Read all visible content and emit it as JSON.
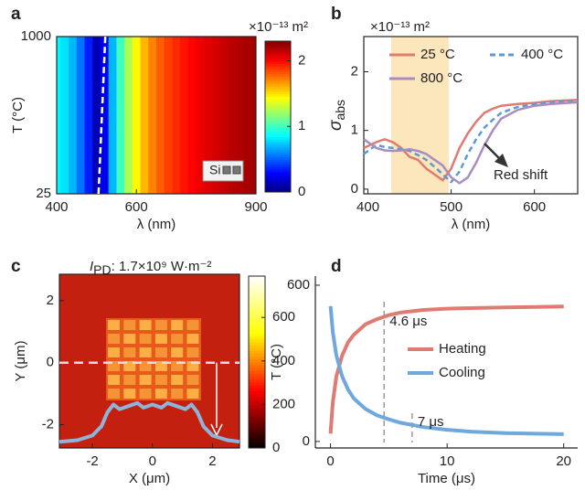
{
  "chart_data": [
    {
      "type": "heatmap",
      "panel": "a",
      "x_label": "λ (nm)",
      "y_label": "T (°C)",
      "xlim": [
        400,
        900
      ],
      "xticks": [
        400,
        600,
        900
      ],
      "ylim": [
        25,
        1000
      ],
      "yticks": [
        25,
        1000
      ],
      "x": [
        400,
        420,
        440,
        460,
        480,
        500,
        520,
        540,
        560,
        580,
        600,
        620,
        640,
        660,
        680,
        700,
        720,
        740,
        760,
        780,
        800,
        820,
        840,
        860,
        880,
        900
      ],
      "values": [
        0.85,
        0.8,
        0.7,
        0.55,
        0.35,
        0.12,
        0.25,
        0.7,
        1.0,
        1.25,
        1.45,
        1.6,
        1.72,
        1.8,
        1.87,
        1.92,
        1.97,
        2.01,
        2.05,
        2.08,
        2.11,
        2.14,
        2.17,
        2.19,
        2.21,
        2.22
      ],
      "minimum_line": {
        "x": [
          505,
          522
        ],
        "y": [
          25,
          1000
        ]
      },
      "inset_label": "Si",
      "colorbar": {
        "label": "×10⁻¹³ m²",
        "lim": [
          0,
          2.3
        ],
        "ticks": [
          0,
          1,
          2
        ],
        "colormap": "jet"
      }
    },
    {
      "type": "line",
      "panel": "b",
      "x_label": "λ (nm)",
      "y_label": "σ",
      "y_label_subscript": "abs",
      "unit_label": "×10⁻¹³ m²",
      "xlim": [
        395,
        652
      ],
      "xticks": [
        400,
        500,
        600
      ],
      "ylim": [
        -0.08,
        2.6
      ],
      "yticks": [
        0,
        1,
        2
      ],
      "shaded_span": {
        "range": [
          428,
          497
        ],
        "color": "#fce6bb"
      },
      "annotation": "Red shift",
      "x": [
        395,
        410,
        420,
        430,
        440,
        450,
        460,
        470,
        480,
        490,
        500,
        510,
        520,
        530,
        540,
        550,
        560,
        580,
        600,
        620,
        652
      ],
      "series": [
        {
          "name": "25 °C",
          "color": "#e07b72",
          "dash": false,
          "values": [
            0.7,
            0.8,
            0.85,
            0.8,
            0.7,
            0.55,
            0.5,
            0.35,
            0.25,
            0.15,
            0.35,
            0.7,
            0.95,
            1.15,
            1.3,
            1.37,
            1.42,
            1.45,
            1.47,
            1.5,
            1.52
          ]
        },
        {
          "name": "400 °C",
          "color": "#5b9bd5",
          "dash": true,
          "values": [
            0.6,
            0.75,
            0.72,
            0.7,
            0.68,
            0.65,
            0.58,
            0.5,
            0.38,
            0.25,
            0.12,
            0.3,
            0.6,
            0.85,
            1.05,
            1.18,
            1.3,
            1.4,
            1.45,
            1.48,
            1.5
          ]
        },
        {
          "name": "800 °C",
          "color": "#a98cc0",
          "dash": false,
          "values": [
            0.85,
            0.7,
            0.66,
            0.65,
            0.66,
            0.68,
            0.65,
            0.6,
            0.5,
            0.4,
            0.2,
            0.1,
            0.2,
            0.45,
            0.75,
            1.0,
            1.2,
            1.35,
            1.42,
            1.45,
            1.48
          ]
        }
      ]
    },
    {
      "type": "intensity_map",
      "panel": "c",
      "title_symbol": "I",
      "title_subscript": "PD",
      "title": ": 1.7×10⁹ W·m⁻²",
      "x_label": "X (μm)",
      "y_label": "Y (μm)",
      "xlim": [
        -3.1,
        2.9
      ],
      "xticks": [
        -2,
        0,
        2
      ],
      "ylim": [
        -2.75,
        2.85
      ],
      "yticks": [
        -2,
        0,
        2
      ],
      "cut_line_y": 0,
      "profile": {
        "color": "#8fb4dc",
        "x": [
          -3.1,
          -2.5,
          -2,
          -1.7,
          -1.5,
          -1.3,
          -1.1,
          -0.8,
          -0.5,
          -0.3,
          0,
          0.3,
          0.5,
          0.8,
          1.1,
          1.3,
          1.5,
          1.7,
          2,
          2.5,
          2.9
        ],
        "values": [
          -2.55,
          -2.5,
          -2.35,
          -2.05,
          -1.6,
          -1.35,
          -1.5,
          -1.4,
          -1.3,
          -1.45,
          -1.35,
          -1.45,
          -1.3,
          -1.4,
          -1.5,
          -1.35,
          -1.6,
          -2.05,
          -2.35,
          -2.5,
          -2.55
        ]
      },
      "colorbar": {
        "lim": [
          0,
          790
        ],
        "ticks": [
          0,
          200,
          400,
          600
        ],
        "colormap": "hot"
      }
    },
    {
      "type": "line",
      "panel": "d",
      "x_label": "Time (μs)",
      "y_label": "T (°C)",
      "xlim": [
        -1.3,
        21.2
      ],
      "xticks": [
        0,
        10,
        20
      ],
      "ylim": [
        -25,
        635
      ],
      "yticks": [
        0,
        600
      ],
      "x": [
        0,
        0.2,
        0.5,
        1,
        1.5,
        2,
        3,
        4,
        5,
        6,
        8,
        10,
        12,
        15,
        20
      ],
      "vlines": [
        {
          "x": 4.6,
          "label": "4.6 μs"
        },
        {
          "x": 7,
          "label": "7 μs"
        }
      ],
      "series": [
        {
          "name": "Heating",
          "color": "#e07b72",
          "dash": false,
          "values": [
            30,
            150,
            250,
            330,
            380,
            410,
            450,
            470,
            485,
            495,
            505,
            510,
            512,
            515,
            518
          ]
        },
        {
          "name": "Cooling",
          "color": "#6fa8dc",
          "dash": false,
          "values": [
            520,
            420,
            330,
            250,
            200,
            165,
            125,
            100,
            85,
            72,
            55,
            45,
            38,
            32,
            28
          ]
        }
      ]
    }
  ]
}
